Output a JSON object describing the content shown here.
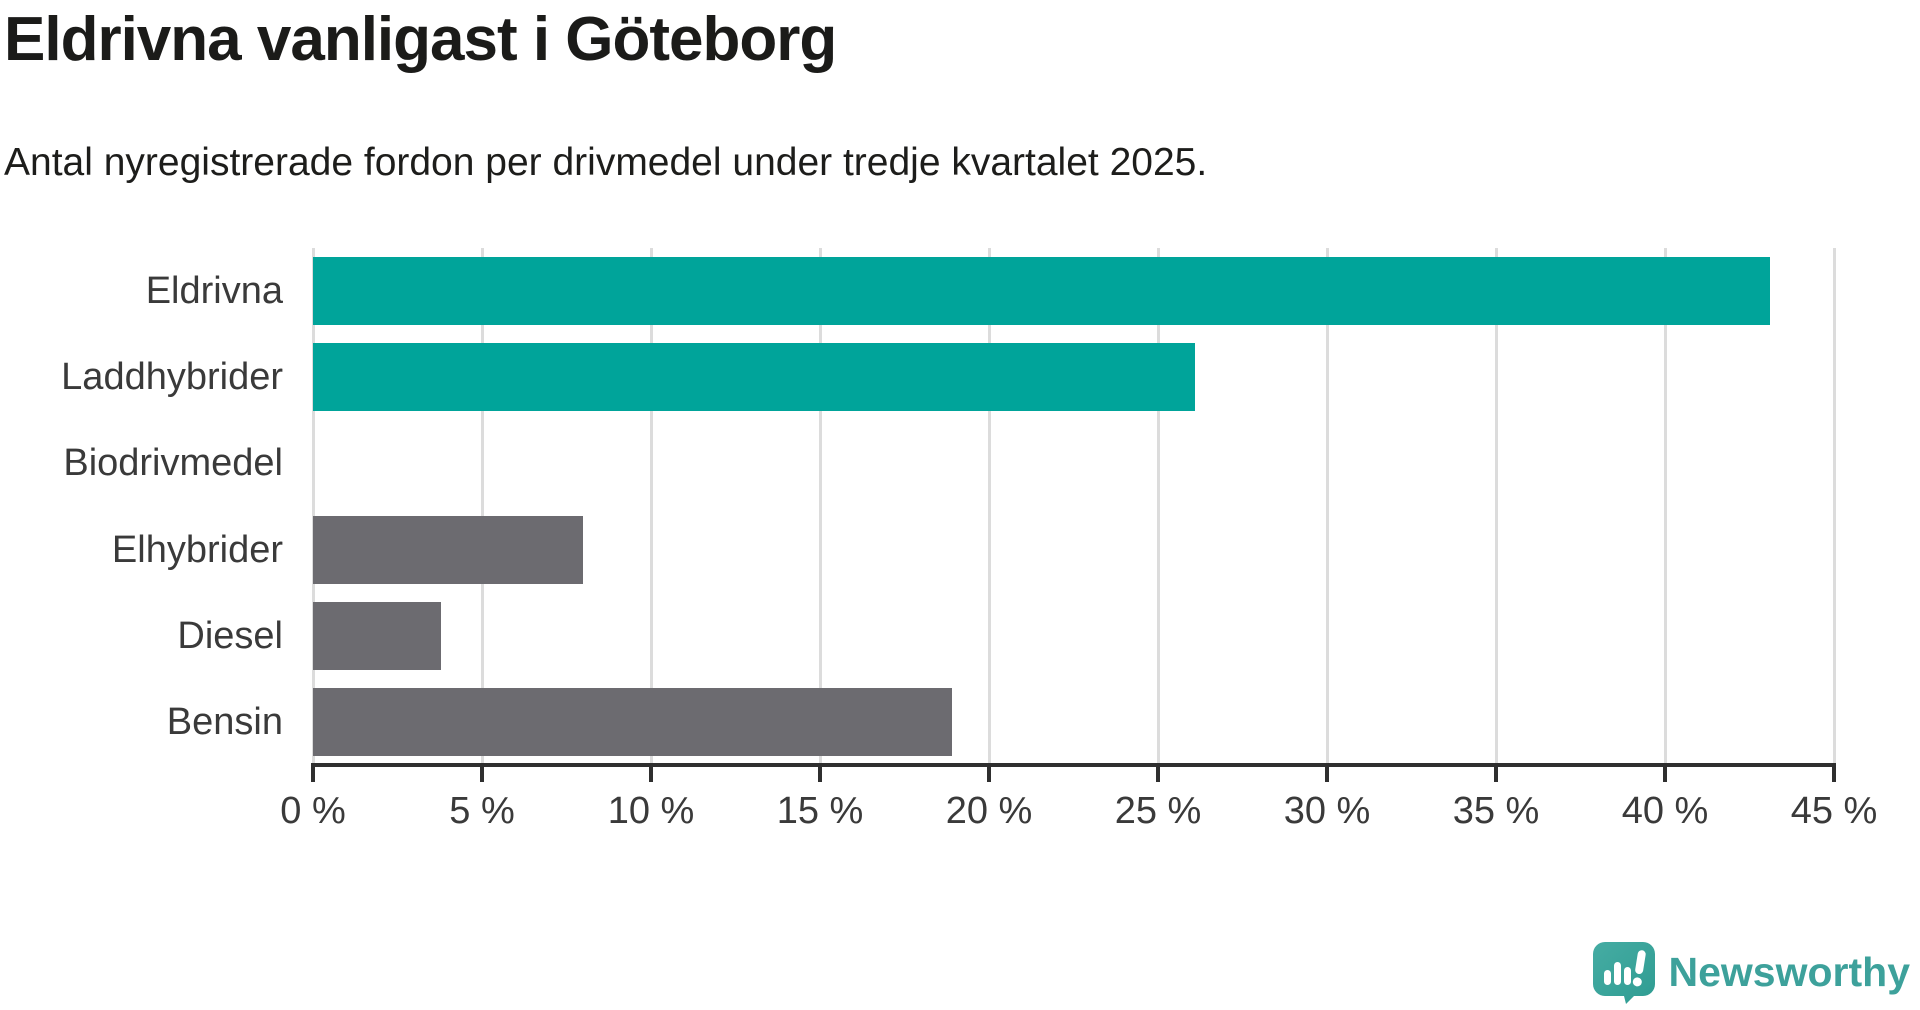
{
  "header": {
    "title": "Eldrivna vanligast i Göteborg",
    "subtitle": "Antal nyregistrerade fordon per drivmedel under tredje kvartalet 2025."
  },
  "chart_data": {
    "type": "bar",
    "orientation": "horizontal",
    "title": "Eldrivna vanligast i Göteborg",
    "subtitle": "Antal nyregistrerade fordon per drivmedel under tredje kvartalet 2025.",
    "categories": [
      "Eldrivna",
      "Laddhybrider",
      "Biodrivmedel",
      "Elhybrider",
      "Diesel",
      "Bensin"
    ],
    "values": [
      43.1,
      26.1,
      0,
      8.0,
      3.8,
      18.9
    ],
    "unit": "%",
    "xlim": [
      0,
      45
    ],
    "x_ticks": [
      0,
      5,
      10,
      15,
      20,
      25,
      30,
      35,
      40,
      45
    ],
    "x_tick_labels": [
      "0 %",
      "5 %",
      "10 %",
      "15 %",
      "20 %",
      "25 %",
      "30 %",
      "35 %",
      "40 %",
      "45 %"
    ],
    "grid": "vertical",
    "legend": "none",
    "bar_colors": [
      "#00a49a",
      "#00a49a",
      "#6c6b70",
      "#6c6b70",
      "#6c6b70",
      "#6c6b70"
    ],
    "colors": {
      "highlight": "#00a49a",
      "default": "#6c6b70",
      "gridline": "#dcdcdc",
      "axis": "#2f2f2f",
      "label": "#3a3a3a"
    }
  },
  "footer": {
    "brand": "Newsworthy",
    "brand_color": "#3da19b",
    "icon": "newsworthy-logo-icon"
  }
}
